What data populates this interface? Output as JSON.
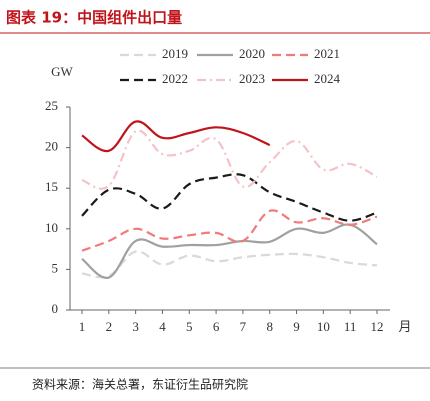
{
  "chart_data": {
    "type": "line",
    "title": "图表 19：中国组件出口量",
    "y_unit": "GW",
    "x_unit": "月",
    "source": "资料来源：海关总署，东证衍生品研究院",
    "categories": [
      1,
      2,
      3,
      4,
      5,
      6,
      7,
      8,
      9,
      10,
      11,
      12
    ],
    "series": [
      {
        "name": "2019",
        "color": "#d9d9d9",
        "dash": "dashed",
        "values": [
          4.5,
          4.2,
          7.2,
          5.6,
          6.7,
          6.0,
          6.5,
          6.8,
          6.9,
          6.5,
          5.8,
          5.5
        ]
      },
      {
        "name": "2020",
        "color": "#a0a0a0",
        "dash": "solid",
        "values": [
          6.3,
          4.0,
          8.5,
          7.8,
          8.0,
          8.0,
          8.5,
          8.4,
          10.0,
          9.5,
          10.5,
          8.1
        ]
      },
      {
        "name": "2021",
        "color": "#f07b7c",
        "dash": "dashed",
        "values": [
          7.3,
          8.5,
          10.0,
          8.8,
          9.2,
          9.5,
          8.5,
          12.2,
          10.8,
          11.3,
          10.5,
          11.5
        ]
      },
      {
        "name": "2022",
        "color": "#1a1a1a",
        "dash": "dashed",
        "values": [
          11.6,
          14.8,
          14.3,
          12.5,
          15.5,
          16.3,
          16.6,
          14.5,
          13.3,
          12.0,
          11.0,
          12.0
        ]
      },
      {
        "name": "2023",
        "color": "#f5c3c7",
        "dash": "dashdot",
        "values": [
          16.0,
          15.3,
          22.0,
          19.2,
          19.6,
          21.0,
          15.2,
          18.2,
          20.8,
          17.3,
          18.0,
          16.4
        ]
      },
      {
        "name": "2024",
        "color": "#c0141a",
        "dash": "solid",
        "values": [
          21.5,
          19.6,
          23.2,
          21.2,
          21.8,
          22.5,
          21.8,
          20.3,
          null,
          null,
          null,
          null
        ]
      }
    ],
    "ylim": [
      0,
      25
    ],
    "yticks": [
      0,
      5,
      10,
      15,
      20,
      25
    ],
    "xlim": [
      1,
      12
    ],
    "grid": false
  }
}
